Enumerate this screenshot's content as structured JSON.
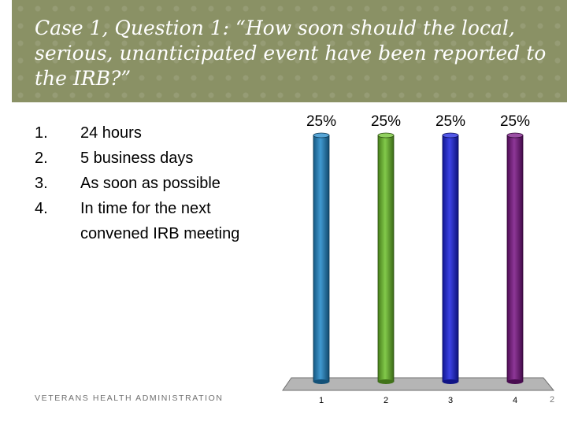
{
  "slide": {
    "title": "Case 1, Question 1:  “How soon should the local, serious, unanticipated event have been reported to the IRB?”",
    "footer": "VETERANS HEALTH ADMINISTRATION",
    "page_number": "2"
  },
  "options": [
    {
      "number": "1.",
      "text": "24 hours"
    },
    {
      "number": "2.",
      "text": "5 business days"
    },
    {
      "number": "3.",
      "text": "As soon as possible"
    },
    {
      "number": "4.",
      "text": "In time for the next convened IRB meeting"
    }
  ],
  "chart_data": {
    "type": "bar",
    "categories": [
      "1",
      "2",
      "3",
      "4"
    ],
    "values": [
      25,
      25,
      25,
      25
    ],
    "value_labels": [
      "25%",
      "25%",
      "25%",
      "25%"
    ],
    "ylim": [
      0,
      25
    ],
    "colors": [
      "#1f87c8",
      "#6cc02a",
      "#1a22e0",
      "#7a1485"
    ],
    "grid": false,
    "legend": "none"
  }
}
